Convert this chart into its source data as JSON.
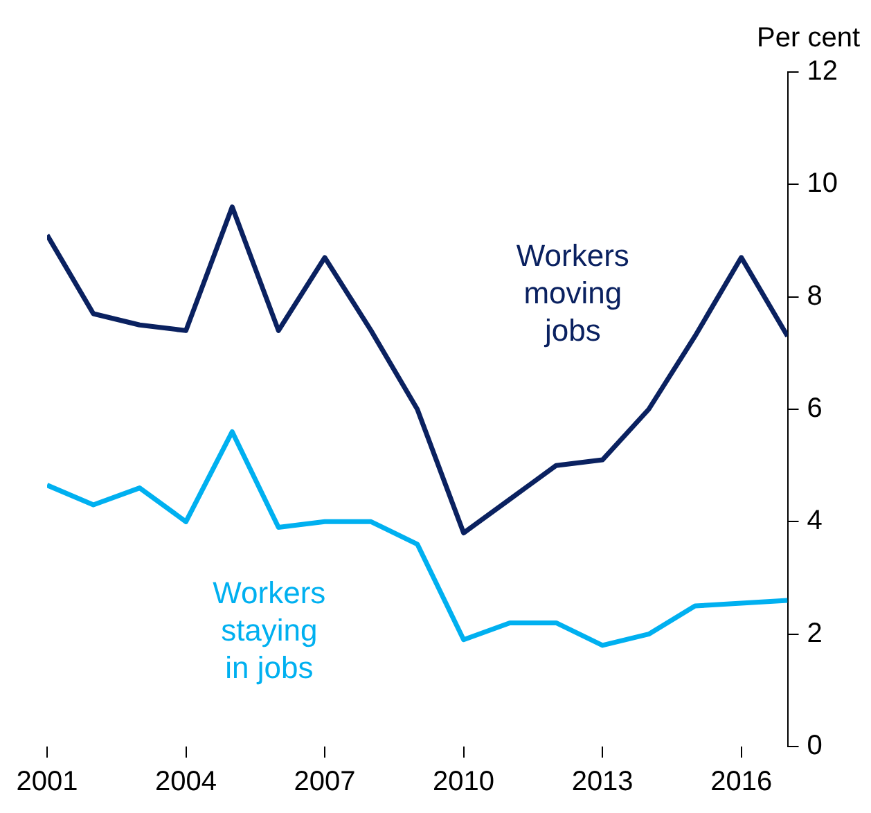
{
  "chart_data": {
    "type": "line",
    "ylabel": "Per cent",
    "x": [
      2001,
      2002,
      2003,
      2004,
      2005,
      2006,
      2007,
      2008,
      2009,
      2010,
      2011,
      2012,
      2013,
      2014,
      2015,
      2016,
      2017
    ],
    "xlim": [
      2001,
      2017
    ],
    "xticks": [
      2001,
      2004,
      2007,
      2010,
      2013,
      2016
    ],
    "ylim": [
      0,
      12
    ],
    "yticks": [
      0,
      2,
      4,
      6,
      8,
      10,
      12
    ],
    "grid": false,
    "legend": false,
    "marker": "none",
    "line_style": "solid",
    "series": [
      {
        "name": "Workers moving jobs",
        "color": "#0a2160",
        "values": [
          9.1,
          7.7,
          7.5,
          7.4,
          9.6,
          7.4,
          8.7,
          7.4,
          6.0,
          3.8,
          4.4,
          5.0,
          5.1,
          6.0,
          7.3,
          8.7,
          7.3
        ]
      },
      {
        "name": "Workers staying in jobs",
        "color": "#00b0f0",
        "values": [
          4.65,
          4.3,
          4.6,
          4.0,
          5.6,
          3.9,
          4.0,
          4.0,
          3.6,
          1.9,
          2.2,
          2.2,
          1.8,
          2.0,
          2.5,
          2.55,
          2.6
        ]
      }
    ]
  }
}
